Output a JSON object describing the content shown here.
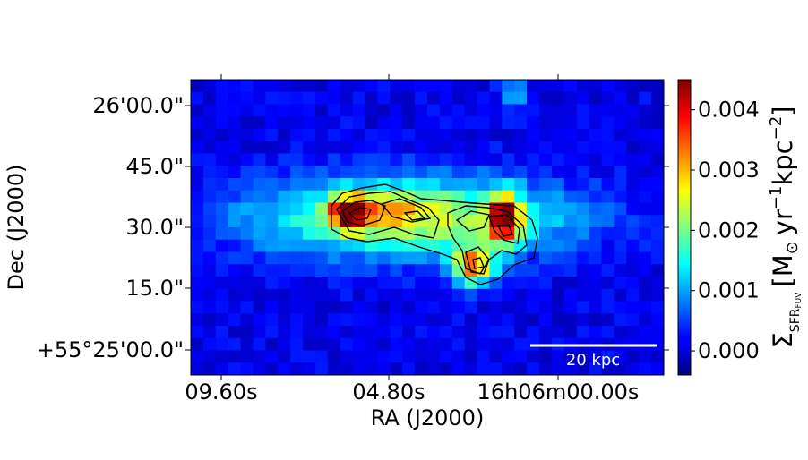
{
  "chart_data": {
    "type": "heatmap",
    "title": "",
    "xlabel": "RA (J2000)",
    "ylabel": "Dec (J2000)",
    "x_ticks": [
      "09.60s",
      "04.80s",
      "16h06m00.00s"
    ],
    "y_ticks": [
      "26'00.0\"",
      "45.0\"",
      "30.0\"",
      "15.0\"",
      "+55°25'00.0\""
    ],
    "colorbar": {
      "label": "Σ_SFR_FUV [M_⊙ yr^-1 kpc^-2]",
      "label_parts": {
        "sigma": "Σ",
        "sub": "SFR",
        "sub2": "FUV",
        "bracket_open": "[M",
        "odot": "⊙",
        "yr": "yr",
        "yr_exp": "−1",
        "kpc": "kpc",
        "kpc_exp": "−2",
        "bracket_close": "]"
      },
      "range": [
        -0.0004,
        0.0045
      ],
      "ticks": [
        0.0,
        0.001,
        0.002,
        0.003,
        0.004
      ],
      "tick_labels": [
        "0.000",
        "0.001",
        "0.002",
        "0.003",
        "0.004"
      ],
      "colormap": "jet"
    },
    "scalebar_label": "20 kpc",
    "contour_color": "#000000",
    "grid": false,
    "image_grid": {
      "cols": 38,
      "rows": 24,
      "background_level": 0.00012,
      "components": [
        {
          "name": "main-body",
          "cx": 17.5,
          "cy": 11.2,
          "sx": 8.6,
          "sy": 2.2,
          "amp": 0.0024
        },
        {
          "name": "east-knot",
          "cx": 12.7,
          "cy": 10.8,
          "sx": 1.0,
          "sy": 0.9,
          "amp": 0.0035
        },
        {
          "name": "west-knot",
          "cx": 25.2,
          "cy": 11.4,
          "sx": 0.9,
          "sy": 1.4,
          "amp": 0.0036
        },
        {
          "name": "south-knot",
          "cx": 22.7,
          "cy": 15.2,
          "sx": 1.1,
          "sy": 1.0,
          "amp": 0.0032
        },
        {
          "name": "middle-knot",
          "cx": 15.8,
          "cy": 10.4,
          "sx": 1.6,
          "sy": 0.9,
          "amp": 0.0009
        },
        {
          "name": "north-blob",
          "cx": 26.0,
          "cy": 1.2,
          "sx": 0.7,
          "sy": 1.0,
          "amp": 0.0011
        }
      ]
    }
  }
}
